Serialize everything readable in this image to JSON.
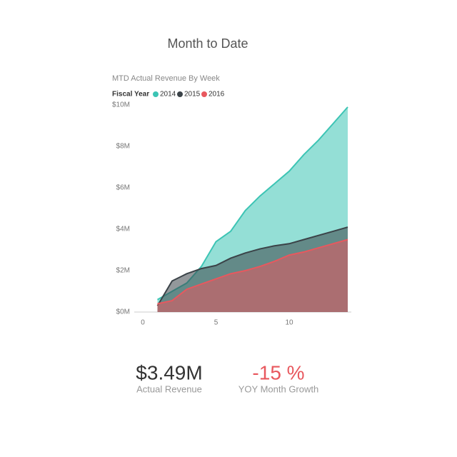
{
  "page_title": "Month to Date",
  "chart_data": {
    "type": "area",
    "title": "MTD Actual Revenue By Week",
    "legend_title": "Fiscal Year",
    "x": [
      1,
      2,
      3,
      4,
      5,
      6,
      7,
      8,
      9,
      10,
      11,
      12,
      13,
      14
    ],
    "series": [
      {
        "name": "2014",
        "color": "#3cc4b4",
        "values": [
          0.6,
          1.0,
          1.4,
          2.2,
          3.4,
          3.9,
          4.9,
          5.6,
          6.2,
          6.8,
          7.6,
          8.3,
          9.1,
          9.9
        ]
      },
      {
        "name": "2015",
        "color": "#3b4348",
        "values": [
          0.3,
          1.5,
          1.85,
          2.1,
          2.25,
          2.6,
          2.85,
          3.05,
          3.2,
          3.3,
          3.5,
          3.7,
          3.9,
          4.1
        ]
      },
      {
        "name": "2016",
        "color": "#e8585e",
        "values": [
          0.4,
          0.55,
          1.1,
          1.35,
          1.6,
          1.85,
          2.0,
          2.2,
          2.45,
          2.75,
          2.9,
          3.1,
          3.3,
          3.5
        ]
      }
    ],
    "xlim": [
      0,
      14
    ],
    "xticks": [
      0,
      5,
      10
    ],
    "ylim": [
      0,
      10
    ],
    "yticks": [
      {
        "value": 0,
        "label": "$0M"
      },
      {
        "value": 2,
        "label": "$2M"
      },
      {
        "value": 4,
        "label": "$4M"
      },
      {
        "value": 6,
        "label": "$6M"
      },
      {
        "value": 8,
        "label": "$8M"
      },
      {
        "value": 10,
        "label": "$10M"
      }
    ],
    "grid": false
  },
  "kpis": [
    {
      "value": "$3.49M",
      "label": "Actual Revenue",
      "color": "#333333"
    },
    {
      "value": "-15 %",
      "label": "YOY Month Growth",
      "color": "#e8585e"
    }
  ]
}
